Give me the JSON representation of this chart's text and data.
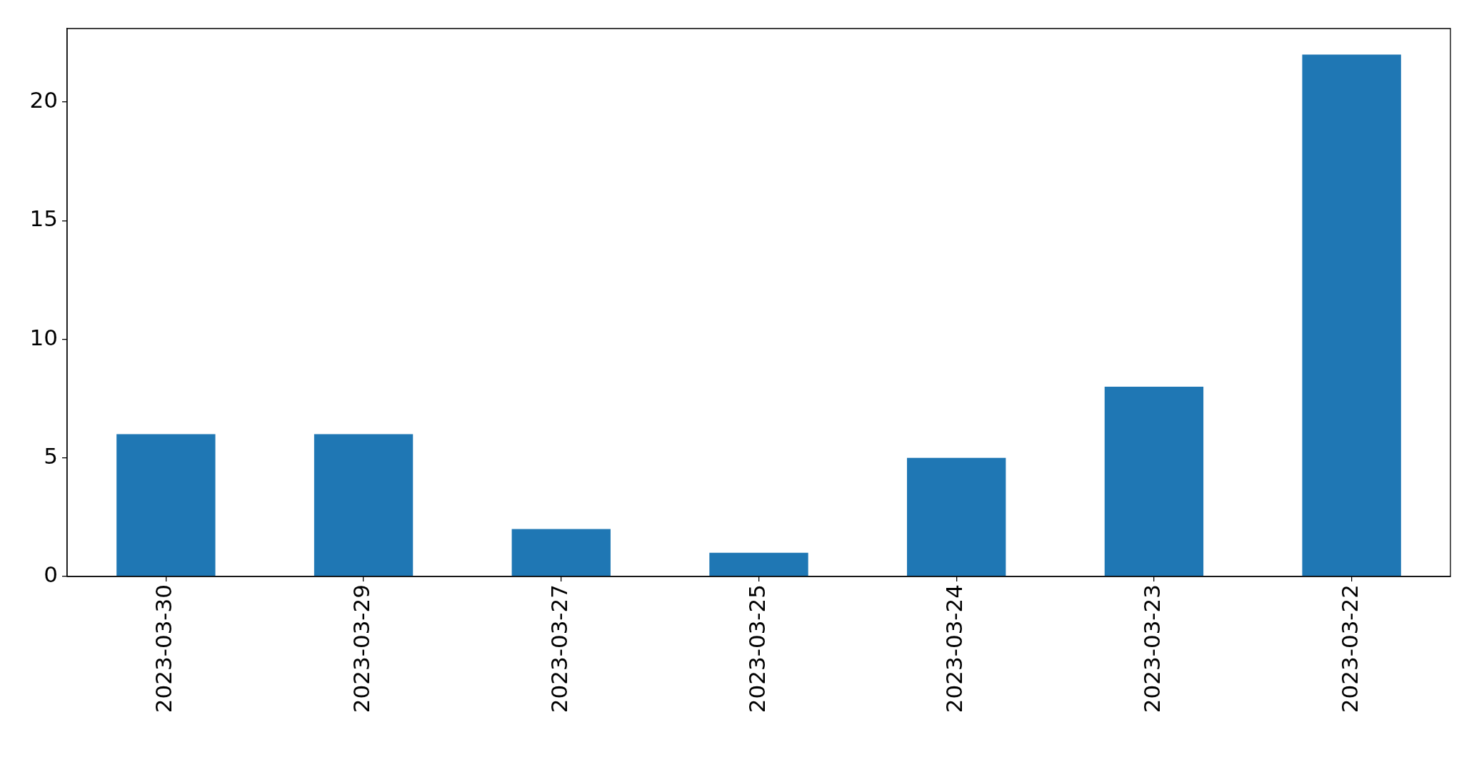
{
  "chart_data": {
    "type": "bar",
    "categories": [
      "2023-03-30",
      "2023-03-29",
      "2023-03-27",
      "2023-03-25",
      "2023-03-24",
      "2023-03-23",
      "2023-03-22"
    ],
    "values": [
      6,
      6,
      2,
      1,
      5,
      8,
      22
    ],
    "color": "#1f77b4",
    "ylim": [
      0,
      23.1
    ],
    "yticks": [
      0,
      5,
      10,
      15,
      20
    ],
    "grid": false,
    "legend": false
  }
}
